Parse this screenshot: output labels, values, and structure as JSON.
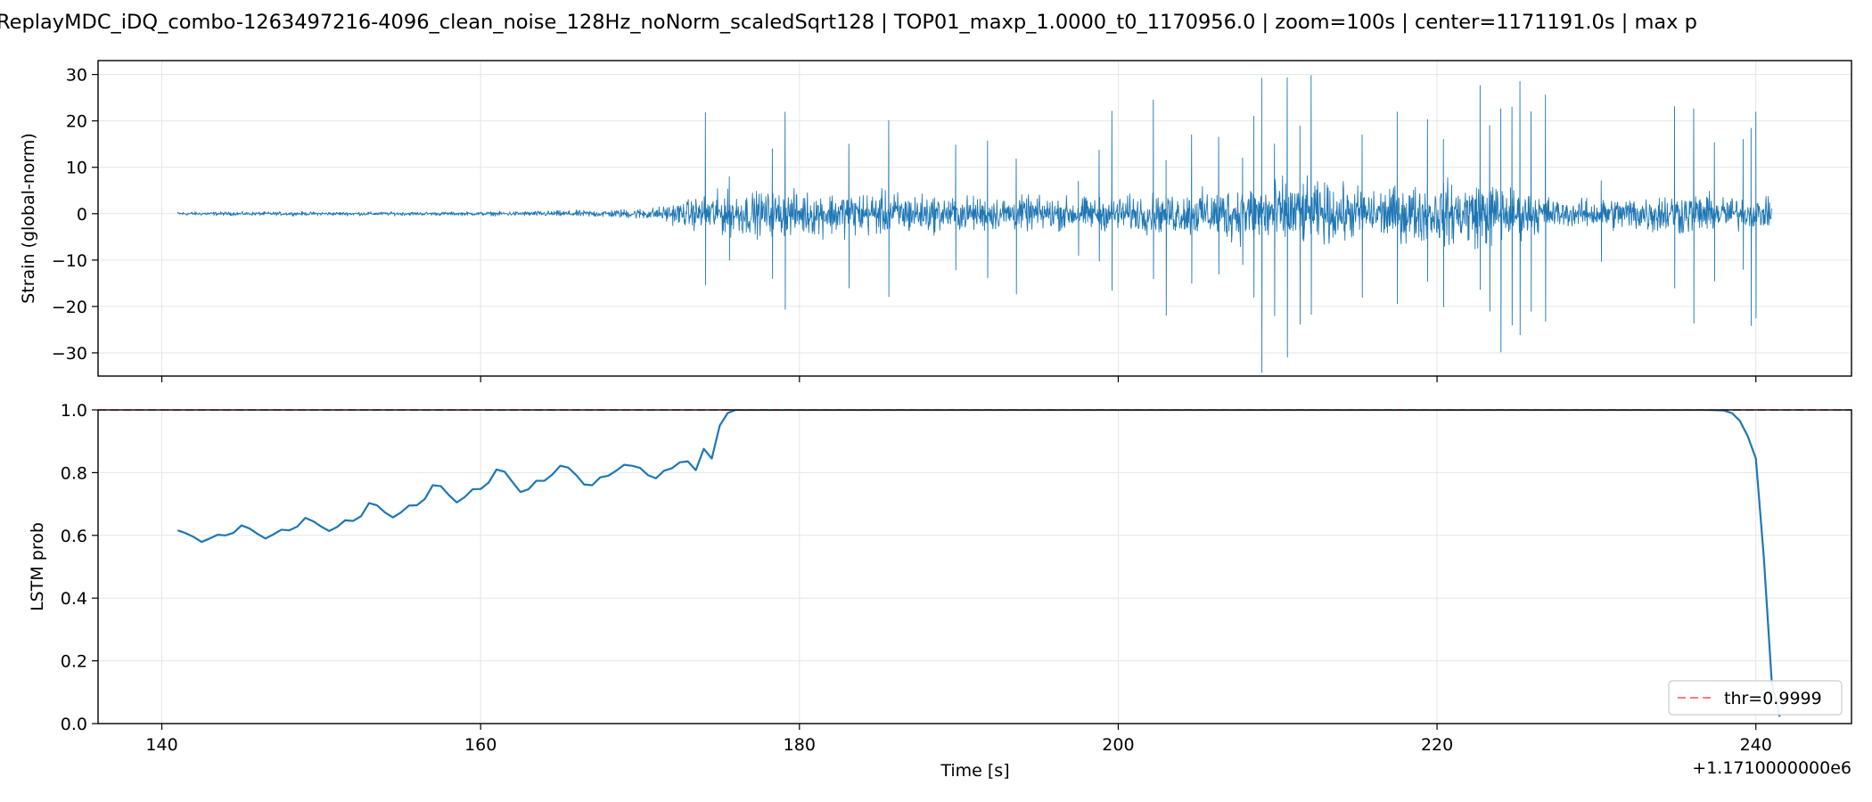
{
  "title": "ReplayMDC_iDQ_combo-1263497216-4096_clean_noise_128Hz_noNorm_scaledSqrt128 | TOP01_maxp_1.0000_t0_1170956.0 | zoom=100s | center=1171191.0s | max p",
  "chart_data": [
    {
      "type": "line",
      "panel": "top",
      "ylabel": "Strain (global-norm)",
      "xlim": [
        136,
        246
      ],
      "ylim": [
        -35,
        33
      ],
      "yticks": [
        -30,
        -20,
        -10,
        0,
        10,
        20,
        30
      ],
      "ytick_labels": [
        "−30",
        "−20",
        "−10",
        "0",
        "10",
        "20",
        "30"
      ],
      "grid": true,
      "series": [
        {
          "color": "#1f77b4",
          "x_range": [
            141,
            241
          ],
          "envelope": [
            {
              "x": 141,
              "amp": 0.3
            },
            {
              "x": 160,
              "amp": 0.3
            },
            {
              "x": 168,
              "amp": 0.6
            },
            {
              "x": 171,
              "amp": 1.0
            },
            {
              "x": 173,
              "amp": 2.2
            },
            {
              "x": 175,
              "amp": 3.5
            },
            {
              "x": 186,
              "amp": 3.5
            },
            {
              "x": 189,
              "amp": 2.8
            },
            {
              "x": 199,
              "amp": 2.6
            },
            {
              "x": 205,
              "amp": 3.6
            },
            {
              "x": 210,
              "amp": 5.5
            },
            {
              "x": 216,
              "amp": 4.0
            },
            {
              "x": 223,
              "amp": 5.5
            },
            {
              "x": 228,
              "amp": 2.0
            },
            {
              "x": 232,
              "amp": 2.8
            },
            {
              "x": 235,
              "amp": 3.5
            },
            {
              "x": 241,
              "amp": 2.2
            }
          ],
          "spikes": [
            {
              "x": 174.1,
              "min": -15.3,
              "max": 21.8
            },
            {
              "x": 175.6,
              "min": -10,
              "max": 8
            },
            {
              "x": 178.3,
              "min": -14,
              "max": 14
            },
            {
              "x": 179.1,
              "min": -20.6,
              "max": 21.9
            },
            {
              "x": 183.1,
              "min": -16,
              "max": 15
            },
            {
              "x": 185.6,
              "min": -17.9,
              "max": 20.1
            },
            {
              "x": 189.8,
              "min": -12.1,
              "max": 14.8
            },
            {
              "x": 191.8,
              "min": -13.8,
              "max": 15.7
            },
            {
              "x": 193.6,
              "min": -17.3,
              "max": 11.8
            },
            {
              "x": 197.5,
              "min": -9,
              "max": 7
            },
            {
              "x": 198.8,
              "min": -10.2,
              "max": 13.7
            },
            {
              "x": 199.6,
              "min": -16.5,
              "max": 22.1
            },
            {
              "x": 202.2,
              "min": -14,
              "max": 24.5
            },
            {
              "x": 203.0,
              "min": -21.9,
              "max": 11.5
            },
            {
              "x": 204.6,
              "min": -15,
              "max": 17
            },
            {
              "x": 206.3,
              "min": -13,
              "max": 16.5
            },
            {
              "x": 207.8,
              "min": -11,
              "max": 12
            },
            {
              "x": 208.5,
              "min": -18,
              "max": 21
            },
            {
              "x": 209.0,
              "min": -34.2,
              "max": 29.2
            },
            {
              "x": 209.8,
              "min": -22,
              "max": 15
            },
            {
              "x": 210.6,
              "min": -30.9,
              "max": 29.3
            },
            {
              "x": 211.4,
              "min": -23.8,
              "max": 18.9
            },
            {
              "x": 212.1,
              "min": -21.7,
              "max": 29.8
            },
            {
              "x": 215.3,
              "min": -18,
              "max": 17
            },
            {
              "x": 217.5,
              "min": -19.4,
              "max": 21.9
            },
            {
              "x": 219.4,
              "min": -14.6,
              "max": 20.3
            },
            {
              "x": 220.4,
              "min": -20.1,
              "max": 16
            },
            {
              "x": 222.7,
              "min": -16.3,
              "max": 27.6
            },
            {
              "x": 223.3,
              "min": -21,
              "max": 19
            },
            {
              "x": 224.0,
              "min": -29.8,
              "max": 22.6
            },
            {
              "x": 224.7,
              "min": -24,
              "max": 23
            },
            {
              "x": 225.2,
              "min": -26.1,
              "max": 28.5
            },
            {
              "x": 225.9,
              "min": -21,
              "max": 22
            },
            {
              "x": 226.8,
              "min": -23.2,
              "max": 25.6
            },
            {
              "x": 230.3,
              "min": -10.3,
              "max": 7.1
            },
            {
              "x": 234.9,
              "min": -16,
              "max": 23.1
            },
            {
              "x": 236.1,
              "min": -23.6,
              "max": 22.6
            },
            {
              "x": 237.4,
              "min": -14.5,
              "max": 15.3
            },
            {
              "x": 239.2,
              "min": -12,
              "max": 16
            },
            {
              "x": 239.7,
              "min": -24.1,
              "max": 18.4
            },
            {
              "x": 240.0,
              "min": -22.5,
              "max": 21.9
            }
          ]
        }
      ]
    },
    {
      "type": "line",
      "panel": "bottom",
      "xlabel": "Time [s]",
      "ylabel": "LSTM prob",
      "offset_label": "+1.1710000000e6",
      "xlim": [
        136,
        246
      ],
      "ylim": [
        0,
        1.0
      ],
      "xticks": [
        140,
        160,
        180,
        200,
        220,
        240
      ],
      "yticks": [
        0.0,
        0.2,
        0.4,
        0.6,
        0.8,
        1.0
      ],
      "ytick_labels": [
        "0.0",
        "0.2",
        "0.4",
        "0.6",
        "0.8",
        "1.0"
      ],
      "grid": true,
      "legend_position": "bottom-right",
      "threshold": {
        "value": 0.9999,
        "label": "thr=0.9999",
        "color": "#ff5050",
        "style": "dashed"
      },
      "series": [
        {
          "color": "#1f77b4",
          "x": [
            141.0,
            141.5,
            142.0,
            142.5,
            143.0,
            143.5,
            144.0,
            144.5,
            145.0,
            145.5,
            146.0,
            146.5,
            147.0,
            147.5,
            148.0,
            148.5,
            149.0,
            149.5,
            150.0,
            150.5,
            151.0,
            151.5,
            152.0,
            152.5,
            153.0,
            153.5,
            154.0,
            154.5,
            155.0,
            155.5,
            156.0,
            156.5,
            157.0,
            157.5,
            158.0,
            158.5,
            159.0,
            159.5,
            160.0,
            160.5,
            161.0,
            161.5,
            162.0,
            162.5,
            163.0,
            163.5,
            164.0,
            164.5,
            165.0,
            165.5,
            166.0,
            166.5,
            167.0,
            167.5,
            168.0,
            168.5,
            169.0,
            169.5,
            170.0,
            170.5,
            171.0,
            171.5,
            172.0,
            172.5,
            173.0,
            173.5,
            174.0,
            174.5,
            175.0,
            175.5,
            176.0,
            180.0,
            190.0,
            200.0,
            210.0,
            220.0,
            230.0,
            236.0,
            237.0,
            238.0,
            238.5,
            239.0,
            239.5,
            240.0,
            240.5,
            241.0,
            241.5
          ],
          "y": [
            0.616,
            0.607,
            0.595,
            0.579,
            0.59,
            0.602,
            0.6,
            0.608,
            0.632,
            0.622,
            0.605,
            0.59,
            0.603,
            0.618,
            0.616,
            0.628,
            0.656,
            0.645,
            0.628,
            0.614,
            0.627,
            0.648,
            0.646,
            0.661,
            0.703,
            0.696,
            0.673,
            0.657,
            0.673,
            0.695,
            0.696,
            0.716,
            0.76,
            0.757,
            0.729,
            0.705,
            0.722,
            0.747,
            0.748,
            0.768,
            0.81,
            0.803,
            0.77,
            0.738,
            0.747,
            0.774,
            0.774,
            0.794,
            0.822,
            0.816,
            0.792,
            0.762,
            0.76,
            0.785,
            0.79,
            0.806,
            0.825,
            0.822,
            0.815,
            0.792,
            0.782,
            0.806,
            0.814,
            0.833,
            0.836,
            0.808,
            0.876,
            0.845,
            0.95,
            0.99,
            1.0,
            1.0,
            1.0,
            1.0,
            1.0,
            1.0,
            1.0,
            1.0,
            1.0,
            0.998,
            0.99,
            0.965,
            0.915,
            0.845,
            0.53,
            0.13,
            0.022
          ]
        }
      ]
    }
  ]
}
